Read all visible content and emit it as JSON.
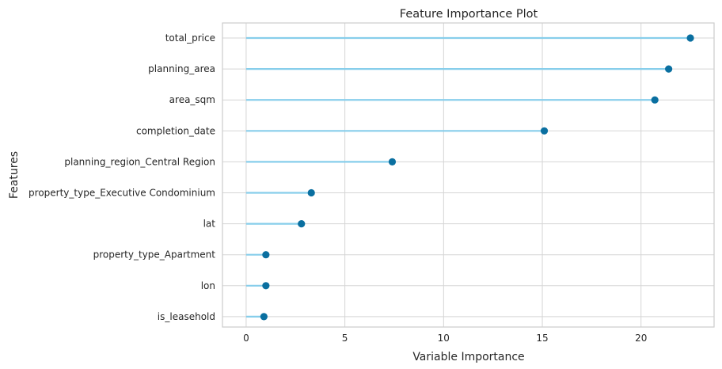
{
  "chart_data": {
    "type": "lollipop",
    "title": "Feature Importance Plot",
    "xlabel": "Variable Importance",
    "ylabel": "Features",
    "xlim": [
      -1.2,
      23.7
    ],
    "xticks": [
      0,
      5,
      10,
      15,
      20
    ],
    "grid": true,
    "categories": [
      "total_price",
      "planning_area",
      "area_sqm",
      "completion_date",
      "planning_region_Central Region",
      "property_type_Executive Condominium",
      "lat",
      "property_type_Apartment",
      "lon",
      "is_leasehold"
    ],
    "values": [
      22.5,
      21.4,
      20.7,
      15.1,
      7.4,
      3.3,
      2.8,
      1.0,
      1.0,
      0.9
    ],
    "colors": {
      "stem": "#87ceeb",
      "marker": "#0a6fa0",
      "grid": "#d5d5d5",
      "frame": "#cccccc"
    }
  }
}
